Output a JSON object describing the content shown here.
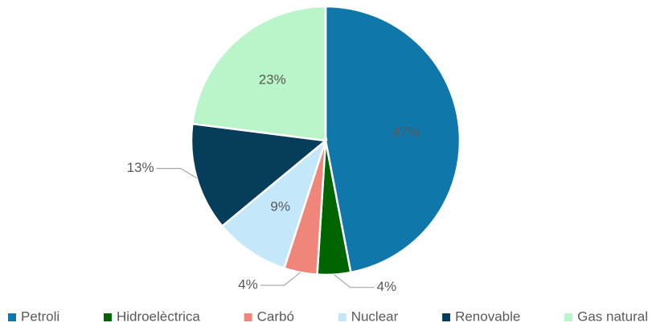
{
  "chart_data": {
    "type": "pie",
    "categories": [
      "Petroli",
      "Hidroelèctrica",
      "Carbó",
      "Nuclear",
      "Renovable",
      "Gas natural"
    ],
    "values": [
      47,
      4,
      4,
      9,
      13,
      23
    ],
    "value_labels": [
      "47%",
      "4%",
      "4%",
      "9%",
      "13%",
      "23%"
    ],
    "colors": [
      "#0f77aa",
      "#006400",
      "#f0857a",
      "#c4e7fa",
      "#063d5a",
      "#b9f5c9"
    ],
    "legend": "bottom"
  }
}
